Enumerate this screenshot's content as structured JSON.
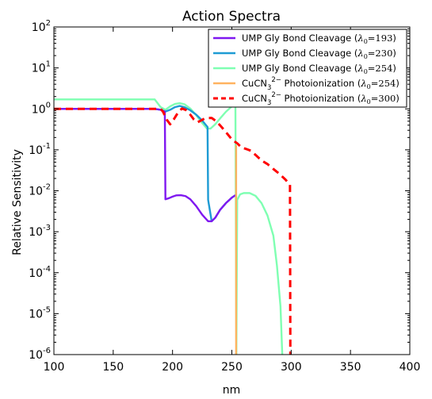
{
  "chart_data": {
    "type": "line",
    "title": "Action Spectra",
    "xlabel": "nm",
    "ylabel": "Relative Sensitivity",
    "xlim": [
      100,
      400
    ],
    "ylim": [
      1e-06,
      100
    ],
    "yscale": "log",
    "x_ticks": [
      "100",
      "150",
      "200",
      "250",
      "300",
      "350",
      "400"
    ],
    "y_ticks": [
      {
        "base": "10",
        "exp": "-6"
      },
      {
        "base": "10",
        "exp": "-5"
      },
      {
        "base": "10",
        "exp": "-4"
      },
      {
        "base": "10",
        "exp": "-3"
      },
      {
        "base": "10",
        "exp": "-2"
      },
      {
        "base": "10",
        "exp": "-1"
      },
      {
        "base": "10",
        "exp": "0"
      },
      {
        "base": "10",
        "exp": "1"
      },
      {
        "base": "10",
        "exp": "2"
      }
    ],
    "legend_position": "top-right",
    "series": [
      {
        "name": "UMP Gly Bond Cleavage",
        "lambda": "254",
        "color": "#7fffb2",
        "style": "solid",
        "points": [
          [
            100,
            1.7
          ],
          [
            185,
            1.7
          ],
          [
            190,
            1.1
          ],
          [
            194,
            0.95
          ],
          [
            198,
            1.15
          ],
          [
            202,
            1.32
          ],
          [
            206,
            1.38
          ],
          [
            210,
            1.3
          ],
          [
            215,
            1.02
          ],
          [
            220,
            0.7
          ],
          [
            225,
            0.45
          ],
          [
            229,
            0.33
          ],
          [
            232,
            0.33
          ],
          [
            236,
            0.42
          ],
          [
            240,
            0.58
          ],
          [
            245,
            0.85
          ],
          [
            250,
            1.15
          ],
          [
            253,
            1.3
          ],
          [
            253.8,
            1e-06
          ],
          [
            254.5,
            0.006
          ],
          [
            257,
            0.0082
          ],
          [
            260,
            0.0088
          ],
          [
            265,
            0.0088
          ],
          [
            270,
            0.0075
          ],
          [
            275,
            0.005
          ],
          [
            280,
            0.0025
          ],
          [
            285,
            0.0008
          ],
          [
            288,
            0.00015
          ],
          [
            291,
            1.5e-05
          ],
          [
            292.5,
            1e-06
          ]
        ]
      },
      {
        "name": "UMP Gly Bond Cleavage",
        "lambda": "230",
        "color": "#1e9bd4",
        "style": "solid",
        "points": [
          [
            100,
            1.0
          ],
          [
            185,
            1.0
          ],
          [
            190,
            0.95
          ],
          [
            194,
            0.86
          ],
          [
            198,
            0.95
          ],
          [
            202,
            1.1
          ],
          [
            206,
            1.18
          ],
          [
            210,
            1.1
          ],
          [
            215,
            0.92
          ],
          [
            220,
            0.72
          ],
          [
            225,
            0.52
          ],
          [
            229.5,
            0.36
          ],
          [
            230,
            0.006
          ],
          [
            233,
            0.0018
          ],
          [
            236,
            0.0022
          ],
          [
            240,
            0.0034
          ],
          [
            245,
            0.005
          ],
          [
            250,
            0.0068
          ],
          [
            253,
            0.0078
          ]
        ]
      },
      {
        "name": "UMP Gly Bond Cleavage",
        "lambda": "193",
        "color": "#7f18f0",
        "style": "solid",
        "points": [
          [
            100,
            1.0
          ],
          [
            185,
            1.0
          ],
          [
            190,
            0.95
          ],
          [
            193.5,
            0.85
          ],
          [
            194,
            0.0062
          ],
          [
            197,
            0.0066
          ],
          [
            200,
            0.0072
          ],
          [
            203,
            0.0077
          ],
          [
            207,
            0.0078
          ],
          [
            211,
            0.0074
          ],
          [
            215,
            0.0062
          ],
          [
            220,
            0.0042
          ],
          [
            225,
            0.0026
          ],
          [
            230,
            0.0018
          ],
          [
            233,
            0.0018
          ],
          [
            236,
            0.0022
          ],
          [
            240,
            0.0034
          ],
          [
            245,
            0.005
          ],
          [
            250,
            0.0068
          ],
          [
            253,
            0.0078
          ]
        ]
      },
      {
        "name": "CuCN₃²⁻ Photoionization",
        "lambda": "254",
        "color": "#ffb360",
        "style": "solid",
        "points": [
          [
            253.6,
            0.13
          ],
          [
            253.6,
            1e-06
          ]
        ]
      },
      {
        "name": "CuCN₃²⁻ Photoionization",
        "lambda": "300",
        "color": "#ff0000",
        "style": "dashed",
        "points": [
          [
            100,
            1.0
          ],
          [
            190,
            1.0
          ],
          [
            192,
            0.85
          ],
          [
            195,
            0.55
          ],
          [
            198,
            0.42
          ],
          [
            201,
            0.55
          ],
          [
            205,
            0.85
          ],
          [
            208,
            1.02
          ],
          [
            211,
            0.95
          ],
          [
            215,
            0.72
          ],
          [
            218,
            0.55
          ],
          [
            221,
            0.47
          ],
          [
            224,
            0.52
          ],
          [
            227,
            0.58
          ],
          [
            230,
            0.6
          ],
          [
            233,
            0.6
          ],
          [
            236,
            0.52
          ],
          [
            240,
            0.4
          ],
          [
            245,
            0.27
          ],
          [
            250,
            0.18
          ],
          [
            255,
            0.14
          ],
          [
            258,
            0.115
          ],
          [
            262,
            0.105
          ],
          [
            266,
            0.095
          ],
          [
            270,
            0.075
          ],
          [
            275,
            0.055
          ],
          [
            280,
            0.045
          ],
          [
            285,
            0.034
          ],
          [
            290,
            0.026
          ],
          [
            295,
            0.019
          ],
          [
            299,
            0.014
          ],
          [
            299.3,
            1e-06
          ]
        ]
      }
    ],
    "legend": [
      {
        "prefix": "UMP Gly Bond Cleavage",
        "lambda": "193",
        "color": "#7f18f0",
        "style": "solid"
      },
      {
        "prefix": "UMP Gly Bond Cleavage",
        "lambda": "230",
        "color": "#1e9bd4",
        "style": "solid"
      },
      {
        "prefix": "UMP Gly Bond Cleavage",
        "lambda": "254",
        "color": "#7fffb2",
        "style": "solid"
      },
      {
        "prefix": "CuCN",
        "sub": "3",
        "sup": "2−",
        "suffix": "Photoionization",
        "lambda": "254",
        "color": "#ffb360",
        "style": "solid"
      },
      {
        "prefix": "CuCN",
        "sub": "3",
        "sup": "2−",
        "suffix": "Photoionization",
        "lambda": "300",
        "color": "#ff0000",
        "style": "dashed"
      }
    ]
  }
}
